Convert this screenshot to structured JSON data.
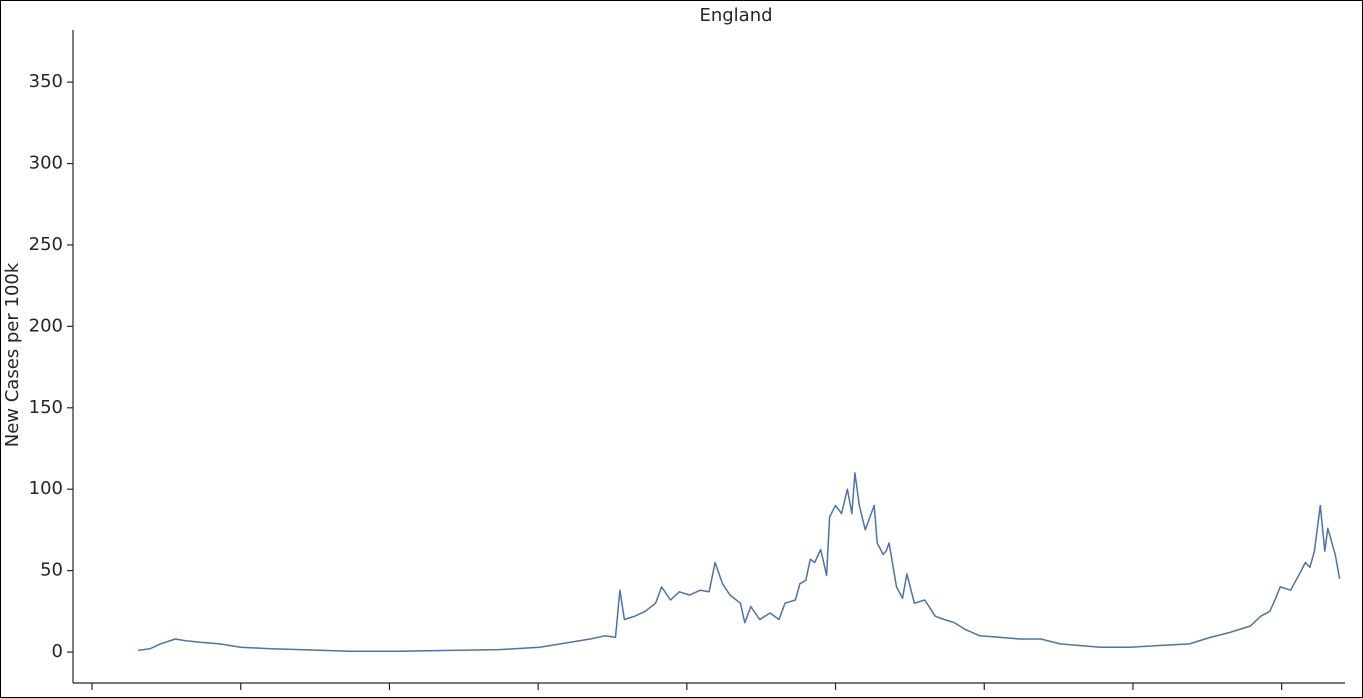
{
  "chart_data": {
    "type": "line",
    "title": "England",
    "y_label": "New Cases per 100k",
    "x": [
      31,
      39,
      46,
      56,
      63,
      73,
      86,
      100,
      120,
      140,
      173,
      207,
      241,
      274,
      301,
      315,
      335,
      345,
      352,
      355,
      358,
      365,
      372,
      379,
      383,
      389,
      395,
      402,
      409,
      415,
      419,
      424,
      429,
      436,
      439,
      443,
      449,
      456,
      462,
      466,
      473,
      476,
      480,
      483,
      486,
      490,
      494,
      496,
      500,
      504,
      508,
      511,
      513,
      516,
      520,
      524,
      526,
      528,
      532,
      534,
      536,
      541,
      545,
      548,
      553,
      560,
      567,
      573,
      580,
      587,
      597,
      611,
      624,
      638,
      651,
      664,
      678,
      698,
      718,
      738,
      752,
      765,
      779,
      786,
      792,
      796,
      799,
      806,
      812,
      816,
      819,
      822,
      826,
      829,
      831,
      836,
      839
    ],
    "series": [
      {
        "name": "England",
        "color": "#4c72b0",
        "values": [
          1,
          2,
          5,
          8,
          7,
          6,
          5,
          3,
          2,
          1.5,
          0.5,
          0.5,
          1,
          1.5,
          3,
          5,
          8,
          10,
          9,
          38,
          20,
          22,
          25,
          30,
          40,
          32,
          37,
          35,
          38,
          37,
          55,
          42,
          35,
          30,
          18,
          28,
          20,
          24,
          20,
          30,
          32,
          42,
          44,
          57,
          55,
          63,
          47,
          83,
          90,
          85,
          100,
          85,
          110,
          90,
          75,
          85,
          90,
          67,
          60,
          62,
          67,
          40,
          33,
          48,
          30,
          32,
          22,
          20,
          18,
          14,
          10,
          9,
          8,
          8,
          5,
          4,
          3,
          3,
          4,
          5,
          9,
          12,
          16,
          22,
          25,
          33,
          40,
          38,
          48,
          55,
          52,
          62,
          90,
          62,
          76,
          60,
          45
        ]
      }
    ],
    "xlim": [
      -12.8,
      842.6
    ],
    "xticks": [
      0,
      100,
      200,
      300,
      400,
      500,
      600,
      700,
      800
    ],
    "ylim": [
      -19,
      382
    ],
    "yticks": [
      0,
      50,
      100,
      150,
      200,
      250,
      300,
      350
    ]
  }
}
